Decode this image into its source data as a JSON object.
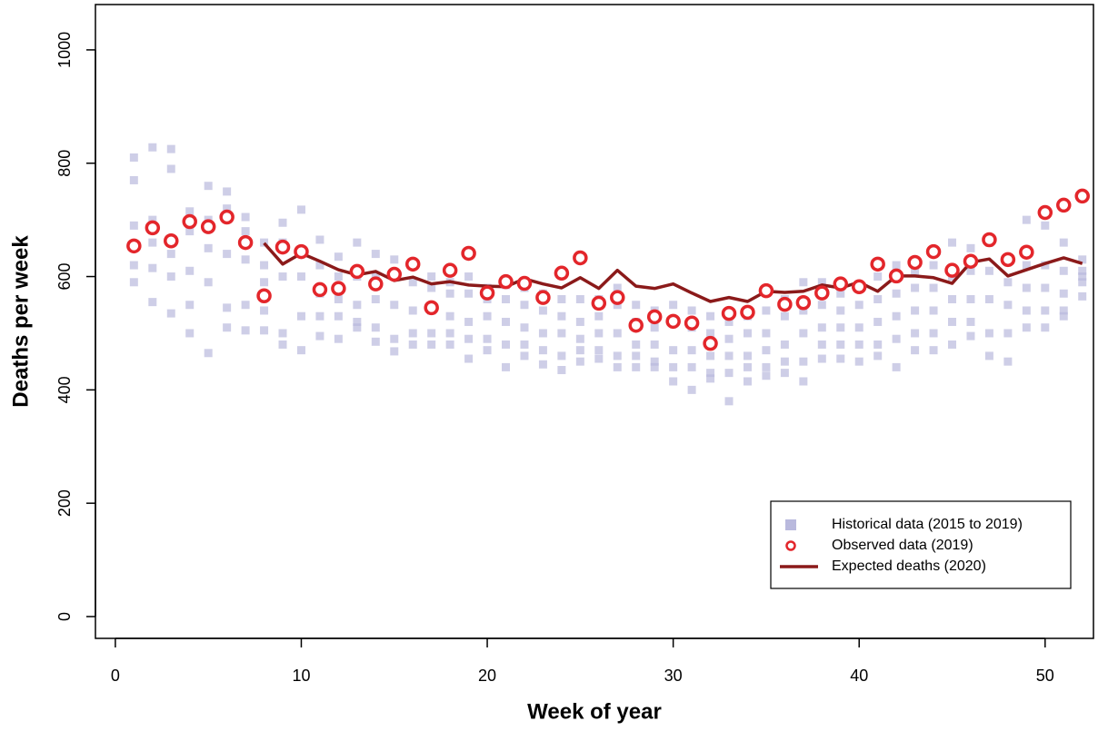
{
  "chart_data": {
    "type": "scatter",
    "xlabel": "Week of year",
    "ylabel": "Deaths per week",
    "xlim": [
      -1.07,
      52.6
    ],
    "ylim": [
      -38.5,
      1080
    ],
    "xticks": [
      0,
      10,
      20,
      30,
      40,
      50
    ],
    "yticks": [
      0,
      200,
      400,
      600,
      800,
      1000
    ],
    "legend": "bottom right",
    "series": [
      {
        "name": "Historical data (2015 to 2019)",
        "marker": "square",
        "color": "#b9b9dd",
        "x": [
          1,
          1,
          1,
          1,
          1,
          2,
          2,
          2,
          2,
          2,
          3,
          3,
          3,
          3,
          3,
          4,
          4,
          4,
          4,
          4,
          5,
          5,
          5,
          5,
          5,
          6,
          6,
          6,
          6,
          6,
          7,
          7,
          7,
          7,
          7,
          8,
          8,
          8,
          8,
          8,
          9,
          9,
          9,
          9,
          9,
          10,
          10,
          10,
          10,
          10,
          11,
          11,
          11,
          11,
          11,
          12,
          12,
          12,
          12,
          12,
          13,
          13,
          13,
          13,
          13,
          14,
          14,
          14,
          14,
          14,
          15,
          15,
          15,
          15,
          15,
          16,
          16,
          16,
          16,
          16,
          17,
          17,
          17,
          17,
          17,
          18,
          18,
          18,
          18,
          18,
          19,
          19,
          19,
          19,
          19,
          20,
          20,
          20,
          20,
          20,
          21,
          21,
          21,
          21,
          21,
          22,
          22,
          22,
          22,
          22,
          23,
          23,
          23,
          23,
          23,
          24,
          24,
          24,
          24,
          24,
          25,
          25,
          25,
          25,
          25,
          26,
          26,
          26,
          26,
          26,
          27,
          27,
          27,
          27,
          27,
          28,
          28,
          28,
          28,
          28,
          29,
          29,
          29,
          29,
          29,
          30,
          30,
          30,
          30,
          30,
          31,
          31,
          31,
          31,
          31,
          32,
          32,
          32,
          32,
          32,
          33,
          33,
          33,
          33,
          33,
          34,
          34,
          34,
          34,
          34,
          35,
          35,
          35,
          35,
          35,
          36,
          36,
          36,
          36,
          36,
          37,
          37,
          37,
          37,
          37,
          38,
          38,
          38,
          38,
          38,
          39,
          39,
          39,
          39,
          39,
          40,
          40,
          40,
          40,
          40,
          41,
          41,
          41,
          41,
          41,
          42,
          42,
          42,
          42,
          42,
          43,
          43,
          43,
          43,
          43,
          44,
          44,
          44,
          44,
          44,
          45,
          45,
          45,
          45,
          45,
          46,
          46,
          46,
          46,
          46,
          47,
          47,
          47,
          47,
          47,
          48,
          48,
          48,
          48,
          48,
          49,
          49,
          49,
          49,
          49,
          50,
          50,
          50,
          50,
          50,
          51,
          51,
          51,
          51,
          51,
          52,
          52,
          52,
          52,
          52
        ],
        "values": [
          810,
          770,
          690,
          620,
          590,
          828,
          700,
          660,
          615,
          555,
          825,
          790,
          640,
          600,
          535,
          715,
          680,
          610,
          550,
          500,
          760,
          700,
          650,
          590,
          465,
          750,
          720,
          640,
          545,
          510,
          705,
          680,
          630,
          550,
          505,
          660,
          620,
          590,
          540,
          505,
          695,
          660,
          600,
          500,
          480,
          718,
          640,
          600,
          530,
          470,
          665,
          620,
          570,
          530,
          495,
          635,
          600,
          560,
          530,
          490,
          660,
          600,
          550,
          520,
          510,
          640,
          600,
          560,
          510,
          485,
          630,
          600,
          550,
          490,
          468,
          620,
          590,
          540,
          500,
          480,
          600,
          580,
          540,
          500,
          480,
          590,
          570,
          530,
          500,
          480,
          600,
          570,
          520,
          490,
          455,
          580,
          560,
          530,
          490,
          470,
          585,
          560,
          520,
          480,
          440,
          580,
          550,
          510,
          480,
          460,
          570,
          540,
          500,
          470,
          445,
          560,
          530,
          500,
          460,
          435,
          560,
          520,
          490,
          470,
          450,
          560,
          530,
          500,
          470,
          455,
          580,
          550,
          500,
          460,
          440,
          550,
          520,
          480,
          460,
          440,
          540,
          510,
          480,
          450,
          440,
          550,
          520,
          470,
          440,
          415,
          540,
          510,
          470,
          440,
          400,
          530,
          500,
          460,
          430,
          420,
          520,
          490,
          460,
          430,
          380,
          530,
          500,
          460,
          440,
          415,
          540,
          500,
          470,
          440,
          425,
          560,
          530,
          480,
          450,
          430,
          590,
          540,
          500,
          450,
          415,
          590,
          550,
          510,
          480,
          455,
          570,
          540,
          510,
          480,
          455,
          580,
          550,
          510,
          480,
          450,
          600,
          560,
          520,
          480,
          460,
          620,
          570,
          530,
          490,
          440,
          610,
          580,
          540,
          500,
          470,
          620,
          580,
          540,
          500,
          470,
          660,
          600,
          560,
          520,
          480,
          650,
          610,
          560,
          520,
          495,
          660,
          610,
          560,
          500,
          460,
          630,
          590,
          550,
          500,
          450,
          700,
          620,
          580,
          540,
          510,
          690,
          620,
          580,
          540,
          510,
          660,
          610,
          570,
          540,
          530,
          630,
          610,
          600,
          590,
          565
        ]
      },
      {
        "name": "Observed data (2019)",
        "marker": "circle",
        "color": "#e3262b",
        "x": [
          1,
          2,
          3,
          4,
          5,
          6,
          7,
          8,
          9,
          10,
          11,
          12,
          13,
          14,
          15,
          16,
          17,
          18,
          19,
          20,
          21,
          22,
          23,
          24,
          25,
          26,
          27,
          28,
          29,
          30,
          31,
          32,
          33,
          34,
          35,
          36,
          37,
          38,
          39,
          40,
          41,
          42,
          43,
          44,
          45,
          46,
          47,
          48,
          49,
          50,
          51,
          52
        ],
        "values": [
          654,
          686,
          663,
          697,
          688,
          705,
          660,
          566,
          652,
          644,
          577,
          579,
          609,
          587,
          604,
          622,
          545,
          611,
          641,
          571,
          591,
          588,
          563,
          606,
          633,
          553,
          563,
          514,
          529,
          521,
          518,
          482,
          535,
          537,
          575,
          551,
          554,
          571,
          587,
          582,
          622,
          601,
          625,
          644,
          611,
          627,
          665,
          630,
          643,
          713,
          726,
          742
        ]
      },
      {
        "name": "Expected deaths (2020)",
        "marker": "line",
        "color": "#8b1a1a",
        "x": [
          8,
          9,
          10,
          11,
          12,
          13,
          14,
          15,
          16,
          17,
          18,
          19,
          20,
          21,
          22,
          23,
          24,
          25,
          26,
          27,
          28,
          29,
          30,
          31,
          32,
          33,
          34,
          35,
          36,
          37,
          38,
          39,
          40,
          41,
          42,
          43,
          44,
          45,
          46,
          47,
          48,
          49,
          50,
          51,
          52
        ],
        "values": [
          659,
          622,
          641,
          627,
          612,
          603,
          609,
          593,
          599,
          587,
          591,
          585,
          583,
          582,
          596,
          587,
          580,
          598,
          579,
          611,
          583,
          579,
          587,
          571,
          556,
          563,
          556,
          574,
          572,
          574,
          585,
          580,
          590,
          574,
          601,
          601,
          598,
          588,
          625,
          631,
          601,
          612,
          623,
          633,
          623
        ]
      }
    ]
  }
}
